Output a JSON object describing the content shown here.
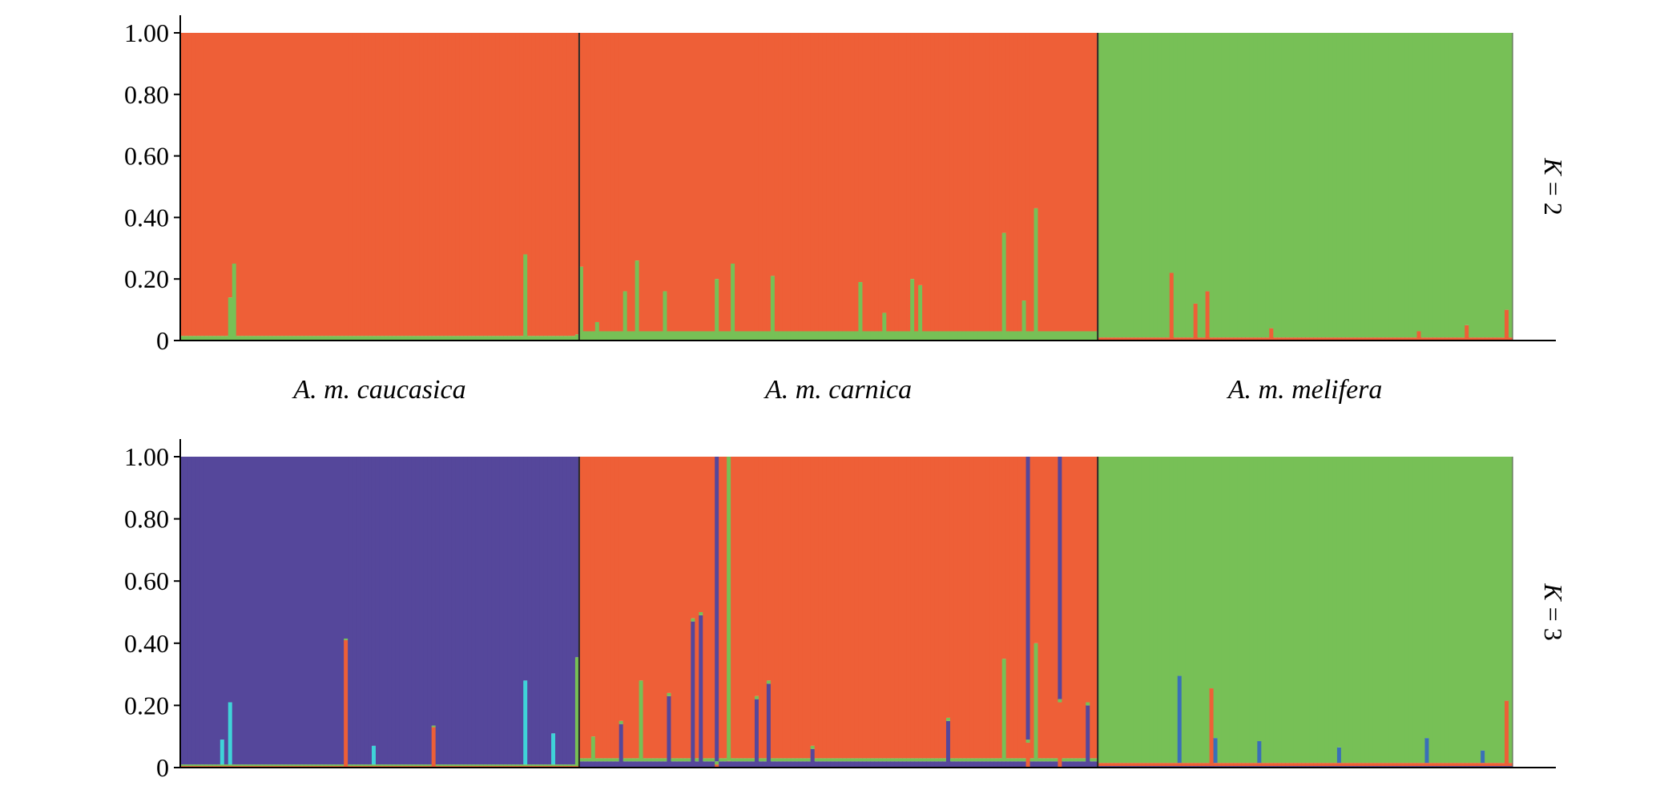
{
  "chart_data": [
    {
      "type": "bar",
      "stacked": true,
      "panel_label": {
        "prefix": "K",
        "rest": " = 2"
      },
      "ylim": [
        0,
        1
      ],
      "yticks": [
        "0",
        "0.20",
        "0.40",
        "0.60",
        "0.80",
        "1.00"
      ],
      "groups": [
        {
          "label": "A. m. caucasica",
          "n": 100
        },
        {
          "label": "A. m. carnica",
          "n": 130
        },
        {
          "label": "A. m. melifera",
          "n": 104
        }
      ],
      "colors": {
        "red": "#EE5F37",
        "green": "#77C056"
      },
      "series": [
        {
          "color": "red",
          "group_baseline": [
            0.985,
            0.97,
            0.01
          ]
        },
        {
          "color": "green",
          "group_baseline": [
            0.015,
            0.03,
            0.99
          ]
        }
      ],
      "spikes": [
        [
          [
            12,
            0.14,
            "green"
          ],
          [
            13,
            0.25,
            "green"
          ],
          [
            86,
            0.28,
            "green"
          ],
          [
            99,
            0.02,
            "green"
          ]
        ],
        [
          [
            0,
            0.24,
            "green"
          ],
          [
            4,
            0.06,
            "green"
          ],
          [
            11,
            0.16,
            "green"
          ],
          [
            14,
            0.26,
            "green"
          ],
          [
            21,
            0.16,
            "green"
          ],
          [
            34,
            0.2,
            "green"
          ],
          [
            38,
            0.25,
            "green"
          ],
          [
            48,
            0.21,
            "green"
          ],
          [
            70,
            0.19,
            "green"
          ],
          [
            76,
            0.09,
            "green"
          ],
          [
            83,
            0.2,
            "green"
          ],
          [
            85,
            0.18,
            "green"
          ],
          [
            106,
            0.35,
            "green"
          ],
          [
            111,
            0.13,
            "green"
          ],
          [
            114,
            0.43,
            "green"
          ],
          [
            128,
            0.03,
            "green"
          ]
        ],
        [
          [
            18,
            0.22,
            "red"
          ],
          [
            24,
            0.12,
            "red"
          ],
          [
            27,
            0.16,
            "red"
          ],
          [
            43,
            0.04,
            "red"
          ],
          [
            80,
            0.03,
            "red"
          ],
          [
            92,
            0.05,
            "red"
          ],
          [
            102,
            0.1,
            "red"
          ]
        ]
      ]
    },
    {
      "type": "bar",
      "stacked": true,
      "panel_label": {
        "prefix": "K",
        "rest": " = 3"
      },
      "ylim": [
        0,
        1
      ],
      "yticks": [
        "0",
        "0.20",
        "0.40",
        "0.60",
        "0.80",
        "1.00"
      ],
      "groups": [
        {
          "label": "",
          "n": 100
        },
        {
          "label": "",
          "n": 130
        },
        {
          "label": "",
          "n": 104
        }
      ],
      "colors": {
        "purple": "#55479B",
        "red": "#EE5F37",
        "green": "#77C056",
        "blue": "#3A6FB8",
        "cyan": "#3FD3D8"
      },
      "series": [
        {
          "color": "purple",
          "group_baseline": [
            0.99,
            0.02,
            0.005
          ]
        },
        {
          "color": "red",
          "group_baseline": [
            0.005,
            0.97,
            0.01
          ]
        },
        {
          "color": "green",
          "group_baseline": [
            0.005,
            0.01,
            0.985
          ]
        }
      ],
      "spikes": [
        [
          [
            10,
            0.08,
            "cyan"
          ],
          [
            12,
            0.2,
            "cyan"
          ],
          [
            41,
            0.41,
            "red"
          ],
          [
            48,
            0.06,
            "cyan"
          ],
          [
            63,
            0.13,
            "red"
          ],
          [
            86,
            0.27,
            "cyan"
          ],
          [
            93,
            0.1,
            "cyan"
          ],
          [
            99,
            0.35,
            "green"
          ]
        ],
        [
          [
            3,
            0.08,
            "green"
          ],
          [
            10,
            0.14,
            "purple"
          ],
          [
            15,
            0.26,
            "green"
          ],
          [
            22,
            0.23,
            "purple"
          ],
          [
            28,
            0.47,
            "purple"
          ],
          [
            30,
            0.49,
            "purple"
          ],
          [
            34,
            0.98,
            "purple"
          ],
          [
            37,
            1.0,
            "green"
          ],
          [
            44,
            0.22,
            "purple"
          ],
          [
            47,
            0.27,
            "purple"
          ],
          [
            58,
            0.06,
            "purple"
          ],
          [
            92,
            0.15,
            "purple"
          ],
          [
            106,
            0.33,
            "green"
          ],
          [
            112,
            0.91,
            "purple"
          ],
          [
            114,
            0.38,
            "green"
          ],
          [
            120,
            0.78,
            "purple"
          ],
          [
            127,
            0.2,
            "purple"
          ]
        ],
        [
          [
            20,
            0.28,
            "blue"
          ],
          [
            28,
            0.25,
            "red"
          ],
          [
            29,
            0.08,
            "blue"
          ],
          [
            40,
            0.07,
            "blue"
          ],
          [
            60,
            0.05,
            "blue"
          ],
          [
            82,
            0.08,
            "blue"
          ],
          [
            96,
            0.04,
            "blue"
          ],
          [
            102,
            0.21,
            "red"
          ]
        ]
      ]
    }
  ]
}
